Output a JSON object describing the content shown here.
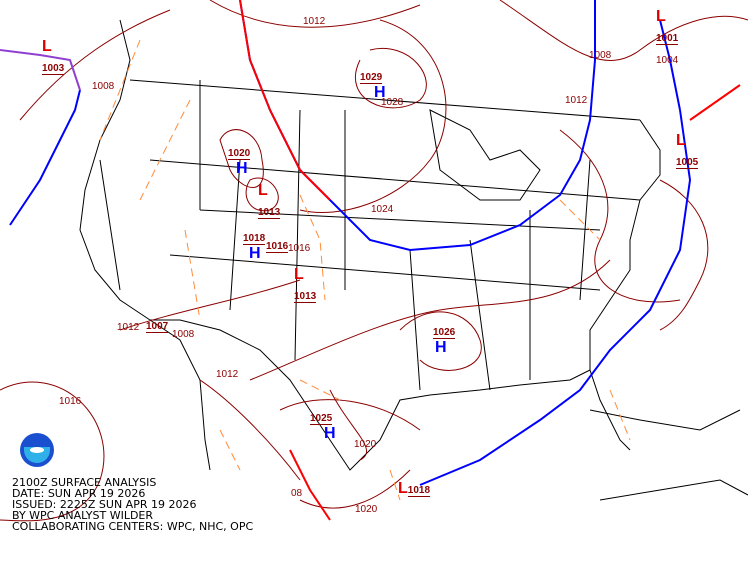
{
  "title_block": {
    "line1": "2100Z SURFACE ANALYSIS",
    "line2": "DATE: SUN APR 19 2026",
    "line3": "ISSUED: 2225Z SUN APR 19 2026",
    "line4": "BY WPC ANALYST WILDER",
    "line5": "COLLABORATING CENTERS: WPC, NHC, OPC"
  },
  "logo": {
    "name": "noaa-logo",
    "text": "NOAA"
  },
  "colors": {
    "isobar": "#8b0000",
    "trough": "#ff8c3a",
    "cold_front": "#0000ff",
    "warm_front": "#ff0000",
    "high": "#0000ff",
    "low": "#dd0000",
    "border": "#000000"
  },
  "pressure_centers": [
    {
      "type": "L",
      "value": "1003"
    },
    {
      "type": "L",
      "value": "1001"
    },
    {
      "type": "L",
      "value": "1005"
    },
    {
      "type": "H",
      "value": "1029"
    },
    {
      "type": "H",
      "value": "1020"
    },
    {
      "type": "L",
      "value": "1013"
    },
    {
      "type": "H",
      "value": "1018"
    },
    {
      "type": "L",
      "value": "1016"
    },
    {
      "type": "L",
      "value": "1013"
    },
    {
      "type": "L",
      "value": "1007"
    },
    {
      "type": "H",
      "value": "1026"
    },
    {
      "type": "H",
      "value": "1025"
    },
    {
      "type": "L",
      "value": "1018"
    }
  ],
  "isobar_labels": [
    "1012",
    "1008",
    "1008",
    "1004",
    "1012",
    "1028",
    "1024",
    "1016",
    "1012",
    "1008",
    "1012",
    "1016",
    "1020",
    "08",
    "1020"
  ]
}
